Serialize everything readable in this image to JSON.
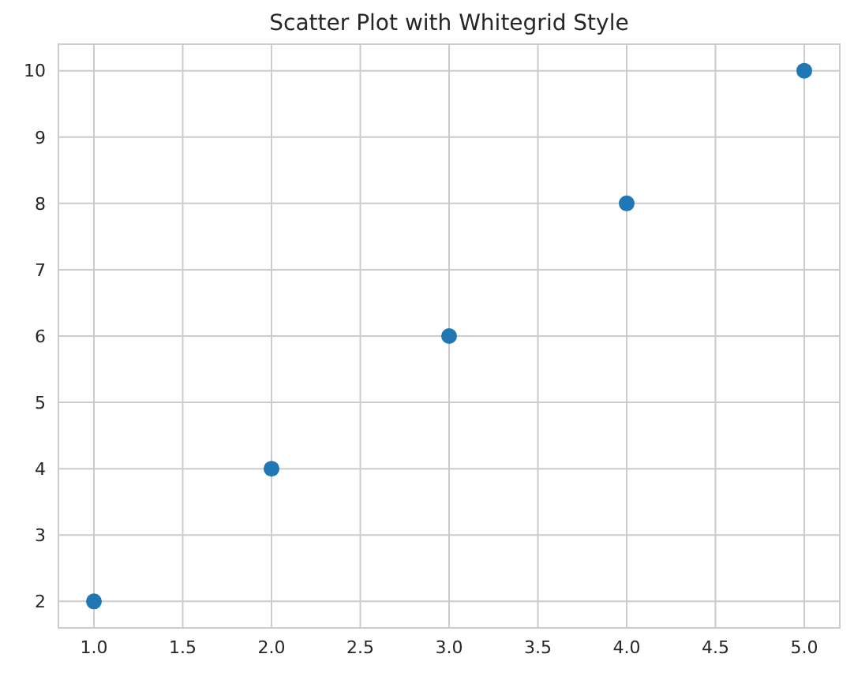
{
  "chart_data": {
    "type": "scatter",
    "title": "Scatter Plot with Whitegrid Style",
    "x": [
      1,
      2,
      3,
      4,
      5
    ],
    "series": [
      {
        "color": "#1f77b4",
        "values": [
          2,
          4,
          6,
          8,
          10
        ]
      }
    ],
    "xlim": [
      0.8,
      5.2
    ],
    "ylim": [
      1.6,
      10.4
    ],
    "xticks": [
      {
        "value": 1,
        "label": "1.0"
      },
      {
        "value": 1.5,
        "label": "1.5"
      },
      {
        "value": 2,
        "label": "2.0"
      },
      {
        "value": 2.5,
        "label": "2.5"
      },
      {
        "value": 3,
        "label": "3.0"
      },
      {
        "value": 3.5,
        "label": "3.5"
      },
      {
        "value": 4,
        "label": "4.0"
      },
      {
        "value": 4.5,
        "label": "4.5"
      },
      {
        "value": 5,
        "label": "5.0"
      }
    ],
    "yticks": [
      2,
      3,
      4,
      5,
      6,
      7,
      8,
      9,
      10
    ],
    "grid": true,
    "marker": "circle"
  }
}
